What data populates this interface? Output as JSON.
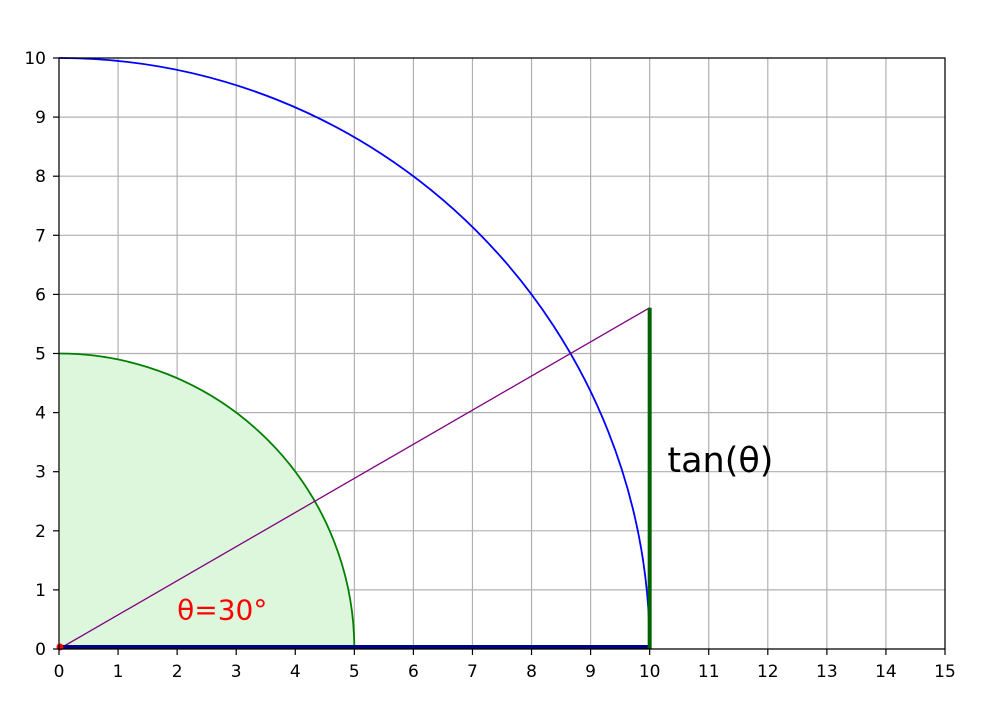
{
  "chart_data": {
    "type": "line",
    "title": "",
    "xlabel": "",
    "ylabel": "",
    "xlim": [
      0,
      15
    ],
    "ylim": [
      0,
      10
    ],
    "x_ticks": [
      "0",
      "1",
      "2",
      "3",
      "4",
      "5",
      "6",
      "7",
      "8",
      "9",
      "10",
      "11",
      "12",
      "13",
      "14",
      "15"
    ],
    "y_ticks": [
      "0",
      "1",
      "2",
      "3",
      "4",
      "5",
      "6",
      "7",
      "8",
      "9",
      "10"
    ],
    "grid": true,
    "angle_deg": 30,
    "shapes": {
      "small_sector": {
        "radius": 5,
        "from_deg": 0,
        "to_deg": 90,
        "fill": "#dcf7dc",
        "stroke": "#008000"
      },
      "large_arc": {
        "radius": 10,
        "from_deg": 0,
        "to_deg": 90,
        "stroke": "#0000ff"
      },
      "angle_ray": {
        "x": [
          0,
          10
        ],
        "y": [
          0,
          5.7735
        ],
        "stroke": "#800080"
      },
      "tangent_segment": {
        "x": [
          10,
          10
        ],
        "y": [
          0,
          5.7735
        ],
        "stroke": "#006400"
      },
      "baseline": {
        "x": [
          0,
          10
        ],
        "y": [
          0,
          0
        ],
        "stroke": "#000080"
      },
      "origin_point": {
        "x": 0,
        "y": 0,
        "color": "#ff0000"
      }
    },
    "annotations": [
      {
        "text": "tan(θ)",
        "x": 10.3,
        "y": 3.2,
        "color": "#000000"
      },
      {
        "text": "θ=30°",
        "x": 2.0,
        "y": 0.7,
        "color": "#ff0000"
      }
    ]
  }
}
